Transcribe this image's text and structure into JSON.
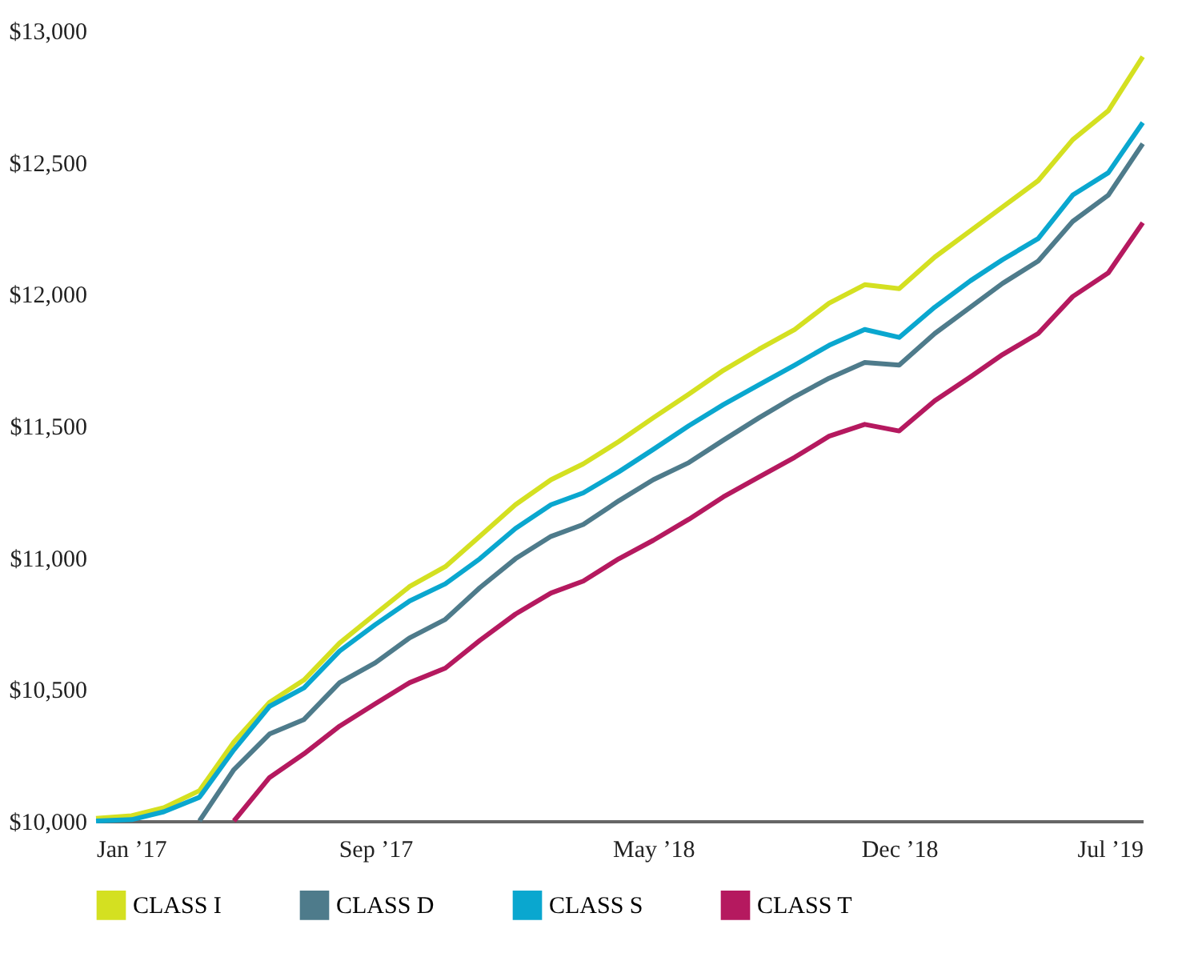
{
  "chart_data": {
    "type": "line",
    "x": [
      "2017-01",
      "2017-02",
      "2017-03",
      "2017-04",
      "2017-05",
      "2017-06",
      "2017-07",
      "2017-08",
      "2017-09",
      "2017-10",
      "2017-11",
      "2017-12",
      "2018-01",
      "2018-02",
      "2018-03",
      "2018-04",
      "2018-05",
      "2018-06",
      "2018-07",
      "2018-08",
      "2018-09",
      "2018-10",
      "2018-11",
      "2018-12",
      "2019-01",
      "2019-02",
      "2019-03",
      "2019-04",
      "2019-05",
      "2019-06",
      "2019-07"
    ],
    "series": [
      {
        "name": "CLASS I",
        "color": "#d4e021",
        "values": [
          10010,
          10020,
          10050,
          10115,
          10300,
          10450,
          10535,
          10675,
          10785,
          10890,
          10965,
          11080,
          11200,
          11295,
          11355,
          11440,
          11530,
          11620,
          11710,
          11790,
          11865,
          11965,
          12035,
          12020,
          12140,
          12240,
          12330,
          12430,
          12585,
          12695,
          12900
        ]
      },
      {
        "name": "CLASS D",
        "color": "#4e7b8b",
        "values": [
          null,
          null,
          null,
          10000,
          10195,
          10330,
          10385,
          10525,
          10600,
          10695,
          10765,
          10885,
          10995,
          11080,
          11125,
          11215,
          11295,
          11360,
          11445,
          11530,
          11610,
          11680,
          11740,
          11730,
          11850,
          11950,
          12040,
          12125,
          12275,
          12375,
          12570
        ]
      },
      {
        "name": "CLASS S",
        "color": "#0aa7cf",
        "values": [
          10000,
          10005,
          10035,
          10090,
          10270,
          10435,
          10505,
          10645,
          10745,
          10835,
          10900,
          10995,
          11110,
          11200,
          11245,
          11325,
          11410,
          11500,
          11580,
          11655,
          11730,
          11805,
          11865,
          11835,
          11950,
          12050,
          12130,
          12210,
          12375,
          12460,
          12650
        ]
      },
      {
        "name": "CLASS T",
        "color": "#b5195f",
        "values": [
          null,
          null,
          null,
          null,
          10000,
          10165,
          10255,
          10360,
          10445,
          10525,
          10580,
          10685,
          10785,
          10865,
          10910,
          10995,
          11065,
          11145,
          11230,
          11305,
          11380,
          11460,
          11505,
          11480,
          11595,
          11685,
          11770,
          11850,
          11990,
          12080,
          12270
        ]
      }
    ],
    "xlim": [
      "2017-01",
      "2019-07"
    ],
    "xticks": [
      {
        "value": "2017-01",
        "label": "Jan ’17"
      },
      {
        "value": "2017-09",
        "label": "Sep ’17"
      },
      {
        "value": "2018-05",
        "label": "May ’18"
      },
      {
        "value": "2018-12",
        "label": "Dec ’18"
      },
      {
        "value": "2019-07",
        "label": "Jul ’19"
      }
    ],
    "ylim": [
      10000,
      13000
    ],
    "yticks": [
      {
        "value": 10000,
        "label": "$10,000"
      },
      {
        "value": 10500,
        "label": "$10,500"
      },
      {
        "value": 11000,
        "label": "$11,000"
      },
      {
        "value": 11500,
        "label": "$11,500"
      },
      {
        "value": 12000,
        "label": "$12,000"
      },
      {
        "value": 12500,
        "label": "$12,500"
      },
      {
        "value": 13000,
        "label": "$13,000"
      }
    ],
    "grid": false,
    "legend": "bottom",
    "marker": "none",
    "line_style": "solid"
  }
}
